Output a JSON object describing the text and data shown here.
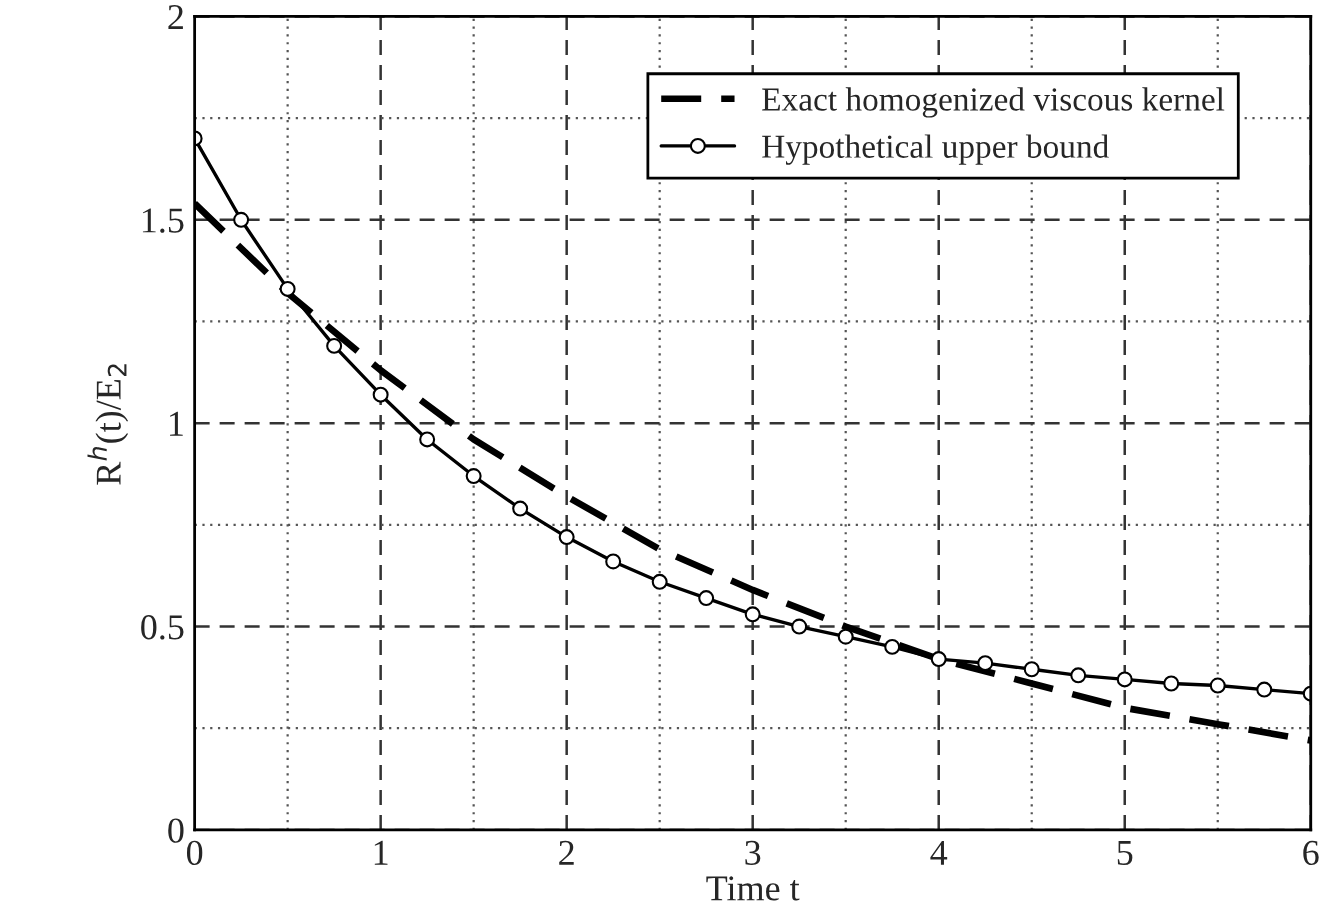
{
  "chart_data": {
    "type": "line",
    "xlabel": "Time t",
    "ylabel": "R$^{h}$(t)/E$_{2}$",
    "xlim": [
      0,
      6
    ],
    "ylim": [
      0,
      2
    ],
    "xticks": [
      0,
      1,
      2,
      3,
      4,
      5,
      6
    ],
    "yticks": [
      0,
      {
        "value": 0.5,
        "label": "0.5"
      },
      1,
      {
        "value": 1.5,
        "label": "1.5"
      },
      2
    ],
    "grid": true,
    "legend": "top right",
    "series": [
      {
        "name": "Exact homogenized viscous kernel",
        "color": "#000000",
        "line_style": "dashed",
        "marker": "none",
        "x": [
          0,
          0.5,
          1,
          1.5,
          2,
          2.5,
          3,
          3.5,
          4,
          4.5,
          5,
          5.5,
          6
        ],
        "values": [
          1.54,
          1.32,
          1.13,
          0.96,
          0.82,
          0.69,
          0.59,
          0.5,
          0.42,
          0.36,
          0.3,
          0.26,
          0.22
        ]
      },
      {
        "name": "Hypothetical upper bound",
        "color": "#000000",
        "line_style": "solid",
        "marker": "circle",
        "x": [
          0,
          0.25,
          0.5,
          0.75,
          1,
          1.25,
          1.5,
          1.75,
          2,
          2.25,
          2.5,
          2.75,
          3,
          3.25,
          3.5,
          3.75,
          4,
          4.25,
          4.5,
          4.75,
          5,
          5.25,
          5.5,
          5.75,
          6
        ],
        "values": [
          1.7,
          1.5,
          1.33,
          1.19,
          1.07,
          0.96,
          0.87,
          0.79,
          0.72,
          0.66,
          0.61,
          0.57,
          0.53,
          0.5,
          0.475,
          0.45,
          0.42,
          0.41,
          0.395,
          0.38,
          0.37,
          0.36,
          0.355,
          0.345,
          0.335
        ]
      }
    ]
  }
}
